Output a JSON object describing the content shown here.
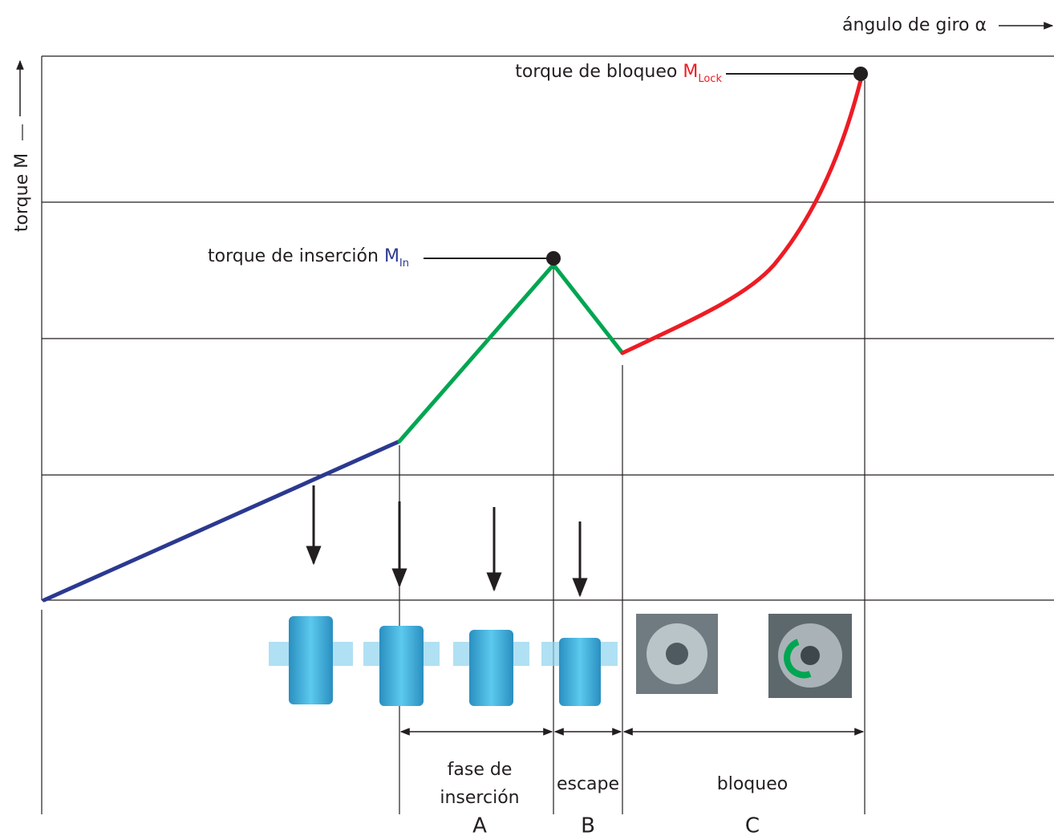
{
  "axis_x_label": "ángulo de giro α",
  "axis_y_label": "torque M",
  "lock_label": {
    "text": "torque de bloqueo ",
    "symbol": "M",
    "subscript": "Lock"
  },
  "insertion_label": {
    "text": "torque de inserción ",
    "symbol": "M",
    "subscript": "In"
  },
  "phases": [
    {
      "name_lines": [
        "fase de",
        "inserción"
      ],
      "letter": "A"
    },
    {
      "name_lines": [
        "escape"
      ],
      "letter": "B"
    },
    {
      "name_lines": [
        "bloqueo"
      ],
      "letter": "C"
    }
  ]
}
